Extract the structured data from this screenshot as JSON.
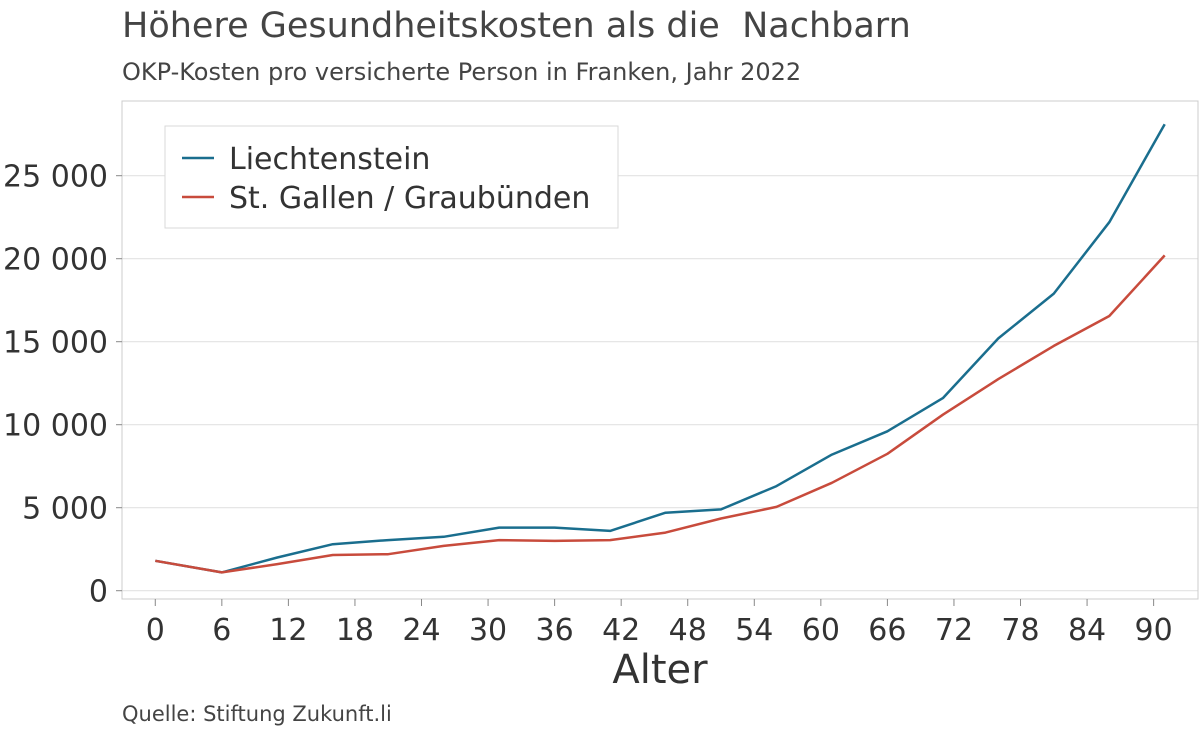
{
  "title": "Höhere Gesundheitskosten als die  Nachbarn",
  "subtitle": "OKP-Kosten pro versicherte Person in Franken, Jahr 2022",
  "source": "Quelle: Stiftung Zukunft.li",
  "colors": {
    "liechtenstein": "#1a6e8e",
    "stgallen": "#c84b3c",
    "grid": "#e3e3e3",
    "frame": "#cccccc"
  },
  "chart_data": {
    "type": "line",
    "xlabel": "Alter",
    "ylabel": "",
    "xlim": [
      -3,
      94
    ],
    "ylim": [
      -500,
      29500
    ],
    "xticks": [
      0,
      6,
      12,
      18,
      24,
      30,
      36,
      42,
      48,
      54,
      60,
      66,
      72,
      78,
      84,
      90
    ],
    "yticks": [
      0,
      5000,
      10000,
      15000,
      20000,
      25000
    ],
    "ytick_labels": [
      "0",
      "5 000",
      "10 000",
      "15 000",
      "20 000",
      "25 000"
    ],
    "grid": true,
    "legend_position": "top-left",
    "series": [
      {
        "name": "Liechtenstein",
        "x": [
          0,
          6,
          11,
          16,
          21,
          26,
          31,
          36,
          41,
          46,
          51,
          56,
          61,
          66,
          71,
          76,
          81,
          86,
          91
        ],
        "values": [
          1800,
          1100,
          2000,
          2800,
          3050,
          3250,
          3800,
          3800,
          3600,
          4700,
          4900,
          6300,
          8200,
          9600,
          11600,
          15200,
          17900,
          22200,
          28100
        ]
      },
      {
        "name": "St. Gallen / Graubünden",
        "x": [
          0,
          6,
          11,
          16,
          21,
          26,
          31,
          36,
          41,
          46,
          51,
          56,
          61,
          66,
          71,
          76,
          81,
          86,
          91
        ],
        "values": [
          1800,
          1100,
          1600,
          2150,
          2200,
          2700,
          3050,
          3000,
          3050,
          3500,
          4350,
          5050,
          6500,
          8250,
          10600,
          12750,
          14750,
          16550,
          20200
        ]
      }
    ]
  }
}
